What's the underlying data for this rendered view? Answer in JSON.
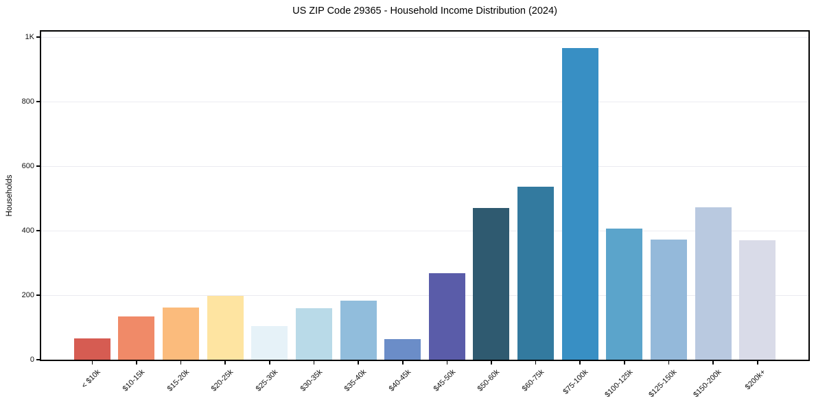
{
  "chart_data": {
    "type": "bar",
    "title": "US ZIP Code 29365 - Household Income Distribution (2024)",
    "xlabel": "",
    "ylabel": "Households",
    "categories": [
      "< $10k",
      "$10-15k",
      "$15-20k",
      "$20-25k",
      "$25-30k",
      "$30-35k",
      "$35-40k",
      "$40-45k",
      "$45-50k",
      "$50-60k",
      "$60-75k",
      "$75-100k",
      "$100-125k",
      "$125-150k",
      "$150-200k",
      "$200k+"
    ],
    "values": [
      65,
      135,
      162,
      197,
      105,
      160,
      183,
      63,
      268,
      470,
      536,
      966,
      406,
      372,
      472,
      371
    ],
    "bar_colors": [
      "#d65c52",
      "#f08a68",
      "#fbbb7c",
      "#fee4a1",
      "#e6f2f8",
      "#b9dae8",
      "#91bddc",
      "#6b8dc8",
      "#5a5ca9",
      "#2f5a70",
      "#337a9f",
      "#388fc4",
      "#5ba4cb",
      "#94b9da",
      "#b9c9e0",
      "#d9dbe8"
    ],
    "yticks": [
      {
        "value": 0,
        "label": "0"
      },
      {
        "value": 200,
        "label": "200"
      },
      {
        "value": 400,
        "label": "400"
      },
      {
        "value": 600,
        "label": "600"
      },
      {
        "value": 800,
        "label": "800"
      },
      {
        "value": 1000,
        "label": "1K"
      }
    ],
    "ylim": [
      0,
      1017
    ],
    "grid": "horizontal",
    "legend": "none",
    "background_color": "#ffffff",
    "gridline_color": "#ebebf1",
    "axis_color": "#000000"
  }
}
